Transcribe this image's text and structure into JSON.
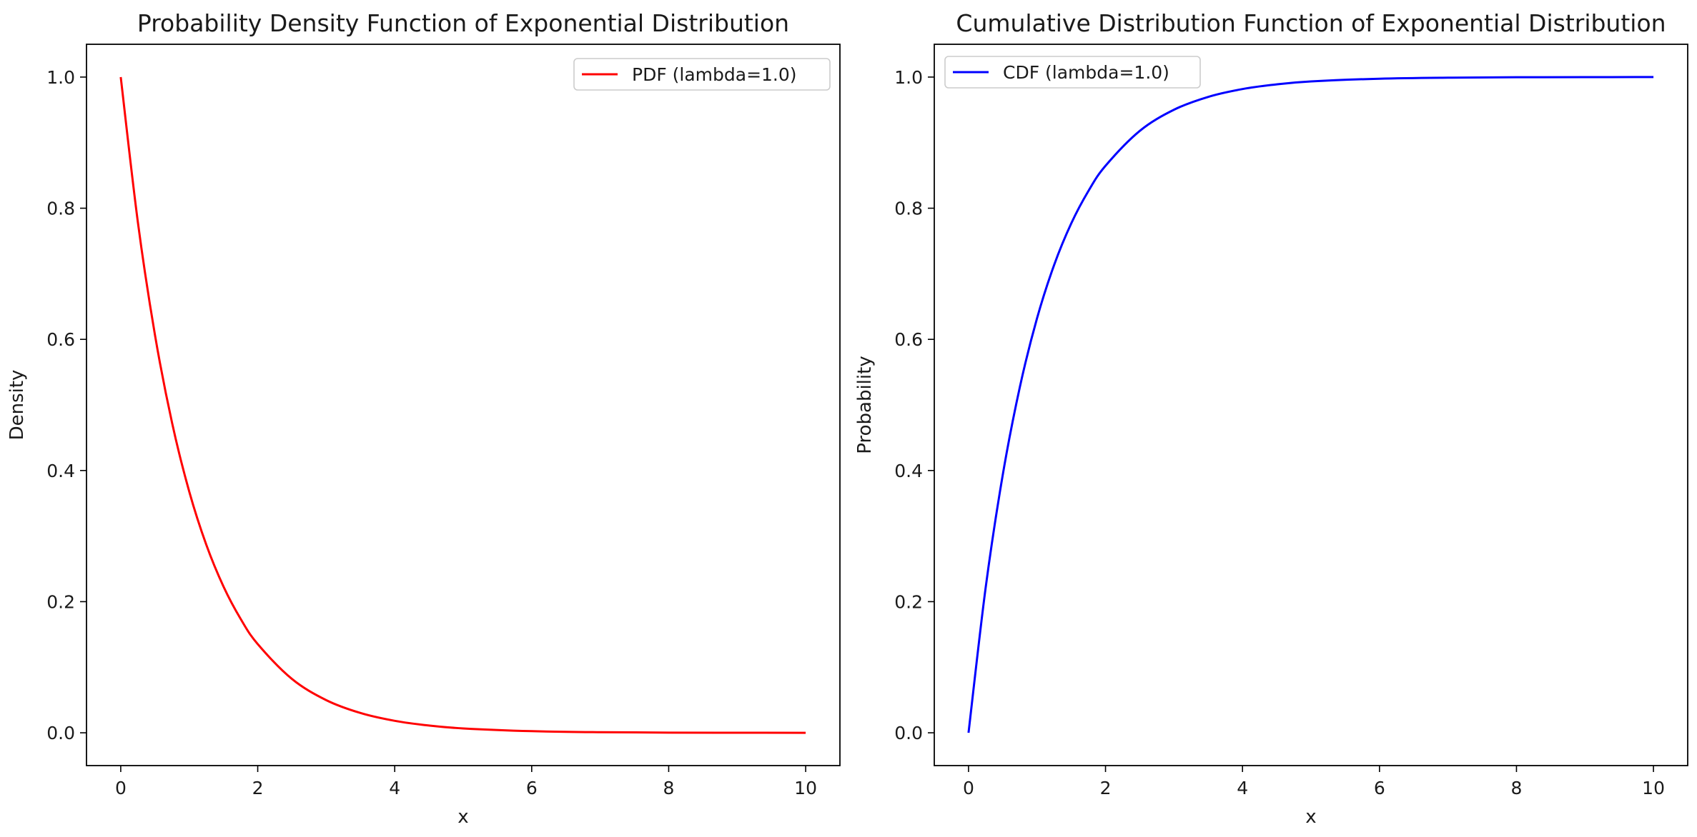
{
  "chart_data": [
    {
      "type": "line",
      "title": "Probability Density Function of Exponential Distribution",
      "xlabel": "x",
      "ylabel": "Density",
      "xlim": [
        -0.5,
        10.5
      ],
      "ylim": [
        -0.05,
        1.05
      ],
      "xticks": [
        0,
        2,
        4,
        6,
        8,
        10
      ],
      "yticks": [
        0.0,
        0.2,
        0.4,
        0.6,
        0.8,
        1.0
      ],
      "xtick_labels": [
        "0",
        "2",
        "4",
        "6",
        "8",
        "10"
      ],
      "ytick_labels": [
        "0.0",
        "0.2",
        "0.4",
        "0.6",
        "0.8",
        "1.0"
      ],
      "grid": false,
      "legend_position": "upper right",
      "series": [
        {
          "name": "PDF (lambda=1.0)",
          "color": "#ff0000",
          "x": [
            0,
            0.25,
            0.5,
            0.75,
            1,
            1.25,
            1.5,
            1.75,
            2,
            2.5,
            3,
            3.5,
            4,
            4.5,
            5,
            6,
            7,
            8,
            9,
            10
          ],
          "y": [
            1.0,
            0.7788,
            0.6065,
            0.4724,
            0.3679,
            0.2865,
            0.2231,
            0.1738,
            0.1353,
            0.0821,
            0.0498,
            0.0302,
            0.0183,
            0.0111,
            0.0067,
            0.0025,
            0.0009,
            0.0003,
            0.0001,
            0.0
          ]
        }
      ]
    },
    {
      "type": "line",
      "title": "Cumulative Distribution Function of Exponential Distribution",
      "xlabel": "x",
      "ylabel": "Probability",
      "xlim": [
        -0.5,
        10.5
      ],
      "ylim": [
        -0.05,
        1.05
      ],
      "xticks": [
        0,
        2,
        4,
        6,
        8,
        10
      ],
      "yticks": [
        0.0,
        0.2,
        0.4,
        0.6,
        0.8,
        1.0
      ],
      "xtick_labels": [
        "0",
        "2",
        "4",
        "6",
        "8",
        "10"
      ],
      "ytick_labels": [
        "0.0",
        "0.2",
        "0.4",
        "0.6",
        "0.8",
        "1.0"
      ],
      "grid": false,
      "legend_position": "upper left",
      "series": [
        {
          "name": "CDF (lambda=1.0)",
          "color": "#0000ff",
          "x": [
            0,
            0.25,
            0.5,
            0.75,
            1,
            1.25,
            1.5,
            1.75,
            2,
            2.5,
            3,
            3.5,
            4,
            4.5,
            5,
            6,
            7,
            8,
            9,
            10
          ],
          "y": [
            0.0,
            0.2212,
            0.3935,
            0.5276,
            0.6321,
            0.7135,
            0.7769,
            0.8262,
            0.8647,
            0.9179,
            0.9502,
            0.9698,
            0.9817,
            0.9889,
            0.9933,
            0.9975,
            0.9991,
            0.9997,
            0.9999,
            1.0
          ]
        }
      ]
    }
  ]
}
